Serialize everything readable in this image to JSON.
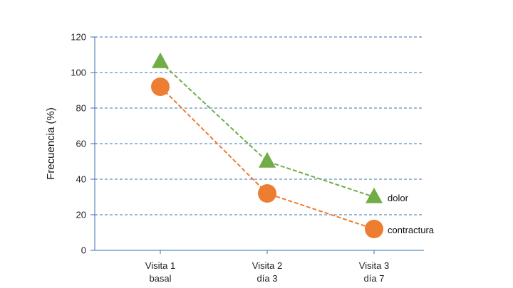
{
  "chart_data": {
    "type": "line",
    "title": "",
    "xlabel": "",
    "ylabel": "Frecuencia (%)",
    "ylim": [
      0,
      120
    ],
    "yticks": [
      0,
      20,
      40,
      60,
      80,
      100,
      120
    ],
    "grid": true,
    "categories": [
      [
        "Visita 1",
        "basal"
      ],
      [
        "Visita 2",
        "día 3"
      ],
      [
        "Visita 3",
        "día 7"
      ]
    ],
    "series": [
      {
        "name": "dolor",
        "values": [
          106,
          50,
          30
        ],
        "color": "#70ad47",
        "marker": "triangle"
      },
      {
        "name": "contractura",
        "values": [
          92,
          32,
          12
        ],
        "color": "#ed7d31",
        "marker": "circle"
      }
    ]
  }
}
